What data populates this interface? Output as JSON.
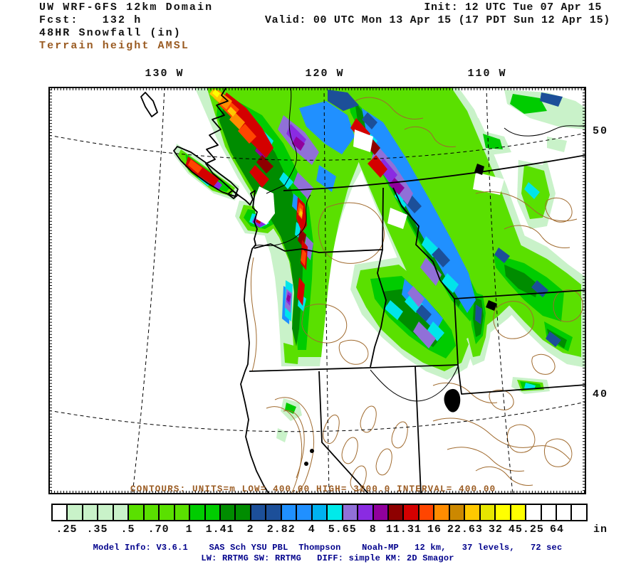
{
  "header": {
    "title": "UW WRF-GFS 12km Domain",
    "fcst": "Fcst:   132 h",
    "field": "48HR Snowfall (in)",
    "overlay": "Terrain height AMSL",
    "init": "Init: 12 UTC Tue 07 Apr 15",
    "valid": "Valid: 00 UTC Mon 13 Apr 15 (17 PDT Sun 12 Apr 15)"
  },
  "map": {
    "top_labels": [
      "130 W",
      "120 W",
      "110 W"
    ],
    "right_labels": [
      "50",
      "40"
    ],
    "contour_caption": "CONTOURS: UNITS=m  LOW= 400.00  HIGH= 3200.0  INTERVAL= 400.00"
  },
  "colorbar": {
    "units": "in",
    "labels": [
      ".25",
      ".35",
      ".5",
      ".70",
      "1",
      "1.41",
      "2",
      "2.82",
      "4",
      "5.65",
      "8",
      "11.31",
      "16",
      "22.63",
      "32",
      "45.25",
      "64",
      "in"
    ],
    "cells": [
      "#ffffff",
      "#c9f2c9",
      "#c9f2c9",
      "#c9f2c9",
      "#c9f2c9",
      "#5ae000",
      "#5ae000",
      "#5ae000",
      "#5ae000",
      "#00cc00",
      "#00cc00",
      "#008c00",
      "#008c00",
      "#1c4f99",
      "#1c4f99",
      "#2090ff",
      "#2090ff",
      "#00b2f0",
      "#00eaea",
      "#9070d8",
      "#8a2be2",
      "#90009c",
      "#8e0000",
      "#d40000",
      "#ff4500",
      "#ff8c00",
      "#cc8800",
      "#ffc800",
      "#e6e600",
      "#ffff00",
      "#ffff00",
      "#ffffff",
      "#ffffff",
      "#ffffff",
      "#ffffff"
    ]
  },
  "footer": {
    "line1": "Model Info: V3.6.1    SAS Sch YSU PBL  Thompson    Noah-MP   12 km,   37 levels,   72 sec",
    "line2": "LW: RRTMG SW: RRTMG   DIFF: simple KM: 2D Smagor"
  },
  "colors": {
    "terrain_label": "#9a5b22",
    "contour_line": "#a06a2e",
    "footer_text": "#00008b",
    "frame": "#000000"
  },
  "chart_data": {
    "type": "heatmap",
    "title": "48HR Snowfall (in), UW WRF-GFS 12km Domain",
    "legend_units": "in",
    "scale_thresholds": [
      0.25,
      0.35,
      0.5,
      0.7,
      1,
      1.41,
      2,
      2.82,
      4,
      5.65,
      8,
      11.31,
      16,
      22.63,
      32,
      45.25,
      64
    ],
    "terrain_contours": {
      "units": "m",
      "low": 400.0,
      "high": 3200.0,
      "interval": 400.0
    }
  }
}
